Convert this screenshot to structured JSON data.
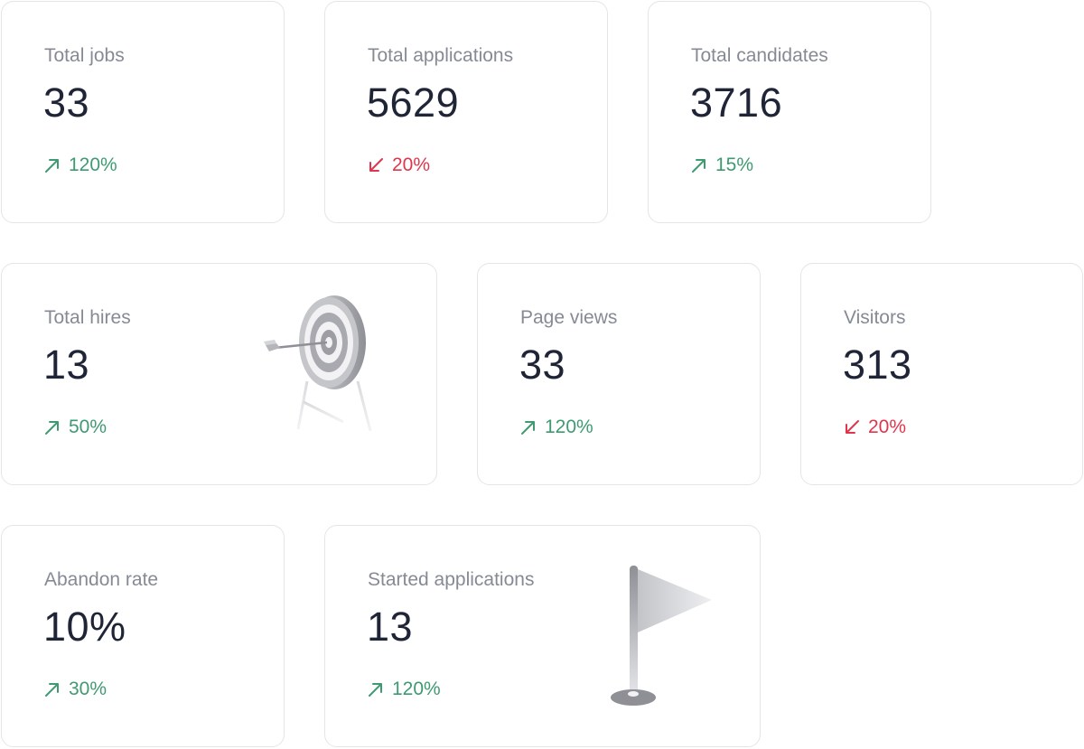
{
  "stats": {
    "total_jobs": {
      "label": "Total jobs",
      "value": "33",
      "trend": "120%",
      "direction": "up",
      "trend_icon": "arrow-up-right-icon"
    },
    "total_applications": {
      "label": "Total applications",
      "value": "5629",
      "trend": "20%",
      "direction": "down",
      "trend_icon": "arrow-down-left-icon"
    },
    "total_candidates": {
      "label": "Total candidates",
      "value": "3716",
      "trend": "15%",
      "direction": "up",
      "trend_icon": "arrow-up-right-icon"
    },
    "total_hires": {
      "label": "Total hires",
      "value": "13",
      "trend": "50%",
      "direction": "up",
      "trend_icon": "arrow-up-right-icon",
      "illustration": "target-icon"
    },
    "page_views": {
      "label": "Page views",
      "value": "33",
      "trend": "120%",
      "direction": "up",
      "trend_icon": "arrow-up-right-icon"
    },
    "visitors": {
      "label": "Visitors",
      "value": "313",
      "trend": "20%",
      "direction": "down",
      "trend_icon": "arrow-down-left-icon"
    },
    "abandon_rate": {
      "label": "Abandon rate",
      "value": "10%",
      "trend": "30%",
      "direction": "up",
      "trend_icon": "arrow-up-right-icon"
    },
    "started_applications": {
      "label": "Started applications",
      "value": "13",
      "trend": "120%",
      "direction": "up",
      "trend_icon": "arrow-up-right-icon",
      "illustration": "flag-icon"
    }
  },
  "colors": {
    "up": "#3f9a72",
    "down": "#e0354d",
    "label": "#868a94",
    "value": "#1f2436",
    "border": "#e3e5e9"
  }
}
